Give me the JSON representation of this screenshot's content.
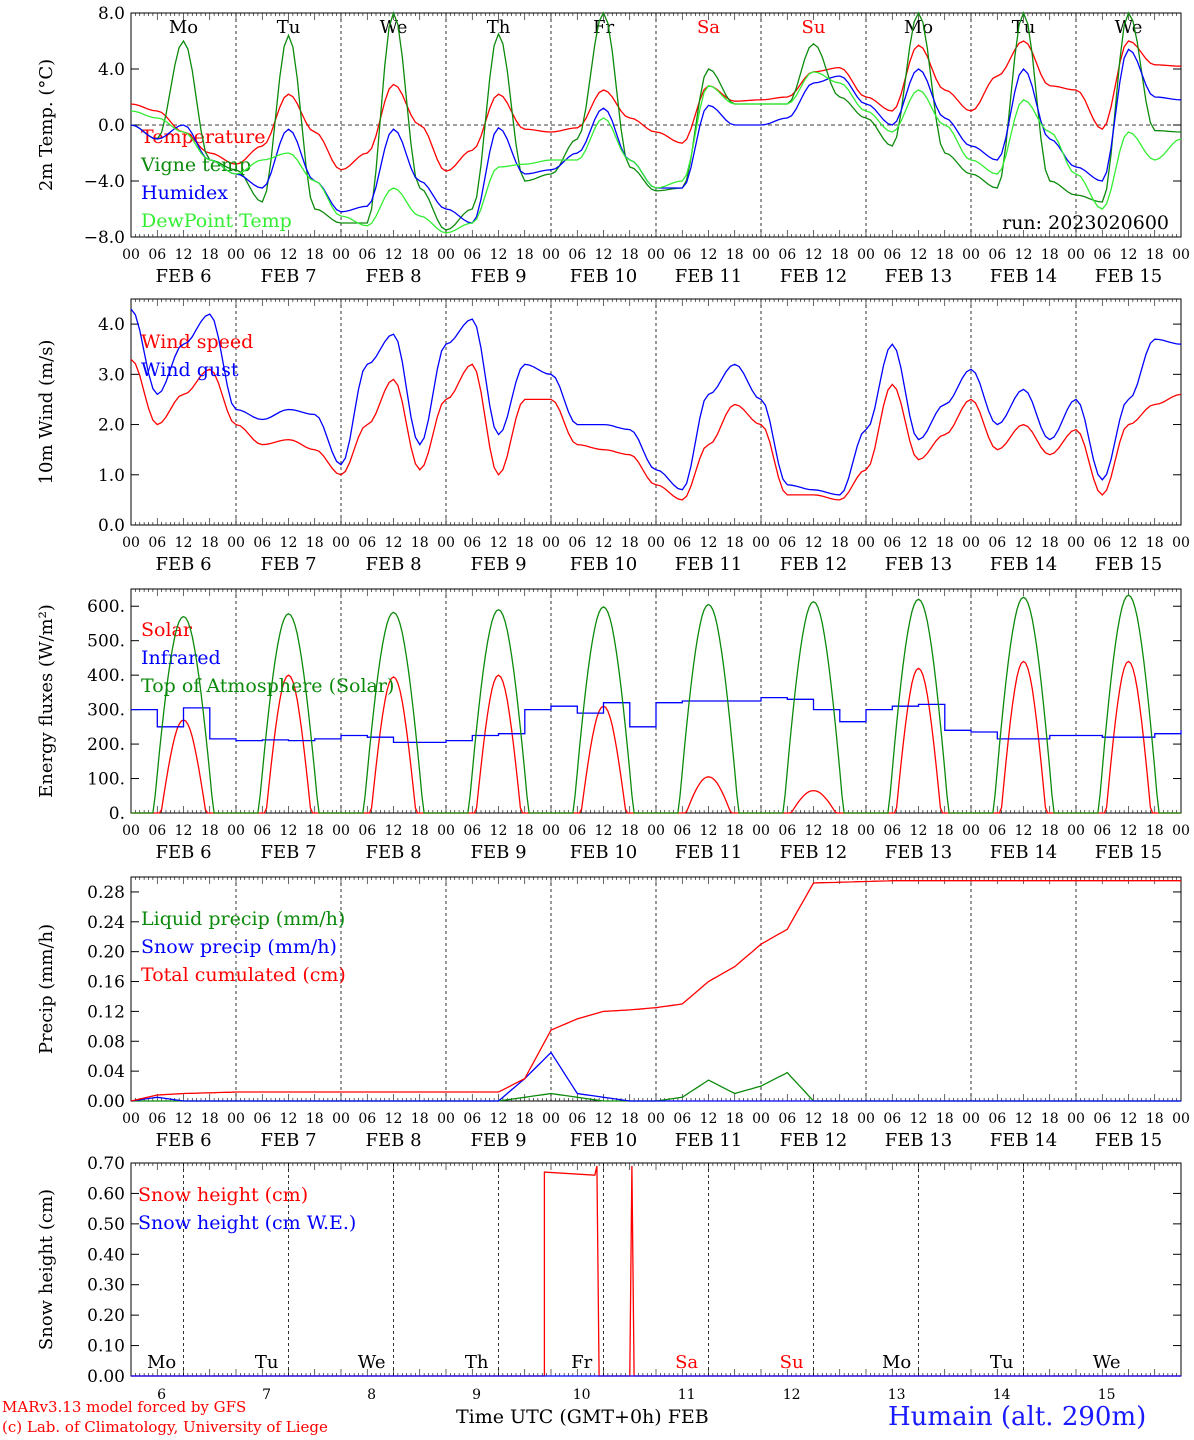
{
  "days_top": [
    "Mo",
    "Tu",
    "We",
    "Th",
    "Fr",
    "Sa",
    "Su",
    "Mo",
    "Tu",
    "We"
  ],
  "day_colors": [
    "#000000",
    "#000000",
    "#000000",
    "#000000",
    "#000000",
    "#ff0000",
    "#ff0000",
    "#000000",
    "#000000",
    "#000000"
  ],
  "date_labels": [
    "FEB  6",
    "FEB  7",
    "FEB  8",
    "FEB  9",
    "FEB 10",
    "FEB 11",
    "FEB 12",
    "FEB 13",
    "FEB 14",
    "FEB 15"
  ],
  "hour_labels": [
    "00",
    "06",
    "12",
    "18"
  ],
  "last_hour_label": "00",
  "footer": {
    "model": "MARv3.13 model forced by GFS",
    "copyright": "(c) Lab. of Climatology, University of Liege",
    "xlabel": "Time UTC (GMT+0h) FEB",
    "station": "Humain (alt. 290m)"
  },
  "chart_data": [
    {
      "type": "line",
      "ylabel": "2m Temp. (°C)",
      "ylim": [
        -8,
        8
      ],
      "yticks": [
        "8.0",
        "4.0",
        "0.0",
        "−4.0",
        "−8.0"
      ],
      "annotation": "run: 2023020600",
      "zero_line": true,
      "x_hours": [
        0,
        6,
        12,
        18,
        24,
        30,
        36,
        42,
        48,
        54,
        60,
        66,
        72,
        78,
        84,
        90,
        96,
        102,
        108,
        114,
        120,
        126,
        132,
        138,
        144,
        150,
        156,
        162,
        168,
        174,
        180,
        186,
        192,
        198,
        204,
        210,
        216,
        222,
        228,
        234,
        240
      ],
      "series": [
        {
          "name": "Temperature",
          "color": "#ff0000",
          "values": [
            1.5,
            1.0,
            -0.5,
            -2.0,
            -2.8,
            -1.5,
            2.2,
            -0.5,
            -3.2,
            -2.0,
            2.9,
            0.0,
            -3.3,
            -1.8,
            2.2,
            -0.3,
            -0.5,
            -0.2,
            2.5,
            0.5,
            -0.5,
            -1.3,
            2.8,
            1.7,
            1.8,
            2.0,
            3.8,
            4.1,
            2.0,
            1.0,
            5.7,
            2.5,
            1.0,
            3.5,
            6.0,
            2.8,
            2.5,
            -0.3,
            6.0,
            4.3,
            4.2
          ]
        },
        {
          "name": "Vigne temp",
          "color": "#0b8a0b",
          "values": [
            0.0,
            -1.0,
            6.0,
            -2.5,
            -3.2,
            -5.5,
            6.4,
            -6.0,
            -7.0,
            -7.0,
            8.0,
            -4.5,
            -7.5,
            -6.0,
            6.5,
            -4.0,
            -3.5,
            -1.0,
            8.0,
            -3.0,
            -4.7,
            -4.5,
            4.0,
            1.5,
            1.5,
            1.5,
            5.8,
            2.0,
            0.5,
            -1.5,
            8.0,
            -2.0,
            -3.5,
            -4.5,
            8.0,
            -4.0,
            -5.0,
            -5.5,
            8.0,
            -0.4,
            -0.5
          ]
        },
        {
          "name": "Humidex",
          "color": "#0000ff",
          "values": [
            0.0,
            -1.0,
            0.0,
            -2.5,
            -3.5,
            -4.5,
            -0.3,
            -4.0,
            -6.2,
            -5.8,
            -0.3,
            -4.0,
            -6.0,
            -7.0,
            -0.2,
            -3.5,
            -3.2,
            -2.0,
            1.2,
            -2.5,
            -4.5,
            -4.5,
            1.4,
            0.0,
            0.0,
            0.5,
            3.0,
            3.5,
            1.5,
            0.0,
            4.0,
            0.5,
            -1.5,
            -2.5,
            4.0,
            -1.0,
            -3.0,
            -4.0,
            5.4,
            2.0,
            1.8
          ]
        },
        {
          "name": "DewPoint Temp",
          "color": "#33ee33",
          "values": [
            1.0,
            0.5,
            -0.5,
            -2.5,
            -3.5,
            -2.5,
            -2.0,
            -4.0,
            -6.5,
            -7.2,
            -4.5,
            -6.5,
            -7.7,
            -7.0,
            -3.0,
            -2.8,
            -2.5,
            -2.5,
            0.5,
            -2.5,
            -4.5,
            -4.0,
            2.8,
            1.5,
            1.5,
            1.5,
            3.8,
            3.0,
            1.0,
            -0.5,
            2.5,
            0.0,
            -2.5,
            -3.5,
            1.8,
            -0.5,
            -3.5,
            -6.0,
            -0.5,
            -2.5,
            -1.0
          ]
        }
      ]
    },
    {
      "type": "line",
      "ylabel": "10m Wind (m/s)",
      "ylim": [
        0,
        4.5
      ],
      "yticks": [
        "4.0",
        "3.0",
        "2.0",
        "1.0",
        "0.0"
      ],
      "x_hours": [
        0,
        6,
        12,
        18,
        24,
        30,
        36,
        42,
        48,
        54,
        60,
        66,
        72,
        78,
        84,
        90,
        96,
        102,
        108,
        114,
        120,
        126,
        132,
        138,
        144,
        150,
        156,
        162,
        168,
        174,
        180,
        186,
        192,
        198,
        204,
        210,
        216,
        222,
        228,
        234,
        240
      ],
      "series": [
        {
          "name": "Wind speed",
          "color": "#ff0000",
          "values": [
            3.3,
            2.0,
            2.6,
            3.1,
            2.0,
            1.6,
            1.7,
            1.5,
            1.0,
            2.0,
            2.9,
            1.1,
            2.5,
            3.2,
            1.0,
            2.5,
            2.5,
            1.6,
            1.5,
            1.4,
            0.8,
            0.5,
            1.6,
            2.4,
            2.0,
            0.6,
            0.6,
            0.5,
            1.1,
            2.8,
            1.3,
            1.8,
            2.5,
            1.5,
            2.0,
            1.4,
            1.9,
            0.6,
            2.0,
            2.4,
            2.6
          ]
        },
        {
          "name": "Wind gust",
          "color": "#0000ff",
          "values": [
            4.3,
            2.6,
            3.6,
            4.2,
            2.3,
            2.1,
            2.3,
            2.2,
            1.2,
            3.2,
            3.8,
            1.6,
            3.6,
            4.1,
            1.8,
            3.2,
            3.0,
            2.0,
            2.0,
            1.9,
            1.1,
            0.7,
            2.6,
            3.2,
            2.5,
            0.8,
            0.7,
            0.6,
            1.9,
            3.6,
            1.7,
            2.4,
            3.1,
            2.0,
            2.7,
            1.7,
            2.5,
            0.9,
            2.5,
            3.7,
            3.6
          ]
        }
      ]
    },
    {
      "type": "line",
      "ylabel": "Energy fluxes (W/m²)",
      "ylim": [
        0,
        650
      ],
      "yticks": [
        "600.",
        "500.",
        "400.",
        "300.",
        "200.",
        "100.",
        "0."
      ],
      "series": [
        {
          "name": "Solar",
          "color": "#ff0000",
          "peaks": [
            270,
            400,
            395,
            400,
            310,
            105,
            65,
            420,
            440,
            440
          ]
        },
        {
          "name": "Infrared",
          "color": "#0000ff",
          "values": [
            300,
            250,
            305,
            215,
            210,
            212,
            210,
            215,
            225,
            220,
            205,
            205,
            210,
            225,
            230,
            300,
            310,
            290,
            320,
            250,
            320,
            325,
            325,
            325,
            335,
            330,
            300,
            265,
            300,
            310,
            315,
            240,
            235,
            215,
            215,
            225,
            225,
            220,
            220,
            230,
            240
          ]
        },
        {
          "name": "Top of Atmosphere (Solar)",
          "color": "#0b8a0b",
          "peaks": [
            570,
            578,
            582,
            590,
            598,
            605,
            613,
            620,
            626,
            632
          ]
        }
      ]
    },
    {
      "type": "line",
      "ylabel": "Precip (mm/h)",
      "ylim": [
        0,
        0.3
      ],
      "yticks": [
        "0.28",
        "0.24",
        "0.20",
        "0.16",
        "0.12",
        "0.08",
        "0.04",
        "0.00"
      ],
      "series": [
        {
          "name": "Liquid precip (mm/h)",
          "color": "#0b8a0b",
          "values": [
            0,
            0,
            0,
            0,
            0,
            0,
            0,
            0,
            0,
            0,
            0,
            0,
            0,
            0,
            0,
            0.005,
            0.01,
            0.005,
            0,
            0,
            0,
            0.005,
            0.028,
            0.01,
            0.02,
            0.038,
            0,
            0,
            0,
            0,
            0,
            0,
            0,
            0,
            0,
            0,
            0,
            0,
            0,
            0,
            0
          ]
        },
        {
          "name": "Snow precip (mm/h)",
          "color": "#0000ff",
          "values": [
            0,
            0.005,
            0,
            0,
            0,
            0,
            0,
            0,
            0,
            0,
            0,
            0,
            0,
            0,
            0,
            0.03,
            0.065,
            0.01,
            0.005,
            0,
            0,
            0,
            0,
            0,
            0,
            0,
            0,
            0,
            0,
            0,
            0,
            0,
            0,
            0,
            0,
            0,
            0,
            0,
            0,
            0,
            0
          ]
        },
        {
          "name": "Total cumulated (cm)",
          "color": "#ff0000",
          "values": [
            0,
            0.008,
            0.01,
            0.011,
            0.012,
            0.012,
            0.012,
            0.012,
            0.012,
            0.012,
            0.012,
            0.012,
            0.012,
            0.012,
            0.012,
            0.03,
            0.095,
            0.11,
            0.12,
            0.122,
            0.125,
            0.13,
            0.16,
            0.18,
            0.21,
            0.23,
            0.292,
            0.293,
            0.294,
            0.295,
            0.295,
            0.295,
            0.295,
            0.295,
            0.295,
            0.295,
            0.295,
            0.295,
            0.295,
            0.295,
            0.295
          ]
        }
      ]
    },
    {
      "type": "line",
      "ylabel": "Snow height (cm)",
      "ylim": [
        0,
        0.7
      ],
      "yticks": [
        "0.70",
        "0.60",
        "0.50",
        "0.40",
        "0.30",
        "0.20",
        "0.10",
        "0.00"
      ],
      "days_bottom": [
        "Mo",
        "Tu",
        "We",
        "Th",
        "Fr",
        "Sa",
        "Su",
        "Mo",
        "Tu",
        "We"
      ],
      "day_numbers": [
        "6",
        "7",
        "8",
        "9",
        "10",
        "11",
        "12",
        "13",
        "14",
        "15"
      ],
      "series": [
        {
          "name": "Snow height (cm)",
          "color": "#ff0000",
          "points": [
            [
              0,
              0
            ],
            [
              94.5,
              0
            ],
            [
              94.5,
              0.67
            ],
            [
              106,
              0.66
            ],
            [
              106.5,
              0.69
            ],
            [
              107,
              0
            ],
            [
              114,
              0
            ],
            [
              114.5,
              0.69
            ],
            [
              115,
              0
            ],
            [
              240,
              0
            ]
          ]
        },
        {
          "name": "Snow height (cm W.E.)",
          "color": "#0000ff",
          "points": [
            [
              0,
              0
            ],
            [
              240,
              0
            ]
          ]
        }
      ]
    }
  ]
}
